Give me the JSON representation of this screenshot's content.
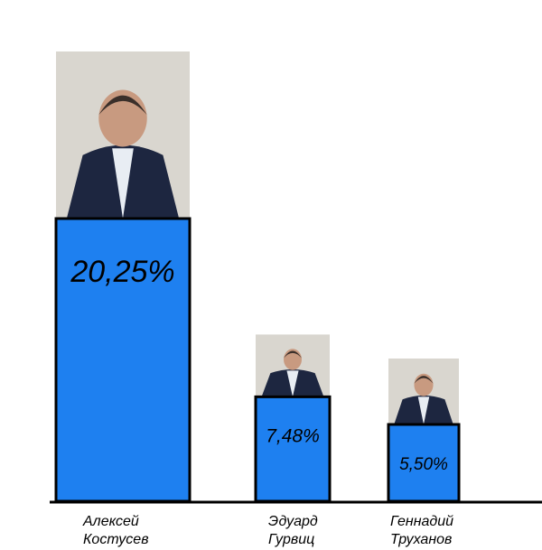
{
  "chart_data": {
    "type": "bar",
    "categories": [
      "Алексей\nКостусев",
      "Эдуард\nГурвиц",
      "Геннадий\nТруханов"
    ],
    "values": [
      20.25,
      7.48,
      5.5
    ],
    "value_labels": [
      "20,25%",
      "7,48%",
      "5,50%"
    ],
    "color": "#1e80f0"
  }
}
